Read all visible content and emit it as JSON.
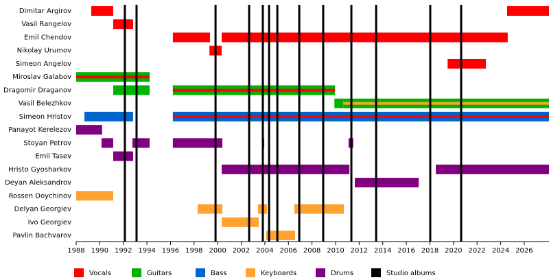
{
  "chart_data": {
    "type": "timeline",
    "xlim": [
      1988,
      2028.1
    ],
    "xticks": [
      1988,
      1990,
      1992,
      1994,
      1996,
      1998,
      2000,
      2002,
      2004,
      2006,
      2008,
      2010,
      2012,
      2014,
      2016,
      2018,
      2020,
      2022,
      2024,
      2026
    ],
    "series": [
      {
        "name": "Vocals",
        "color": "#ff0000"
      },
      {
        "name": "Guitars",
        "color": "#00b400"
      },
      {
        "name": "Bass",
        "color": "#0066cc"
      },
      {
        "name": "Keyboards",
        "color": "#ffa22f"
      },
      {
        "name": "Drums",
        "color": "#800080"
      },
      {
        "name": "Studio albums",
        "color": "#000000",
        "values": [
          1992.13,
          1993.12,
          1999.82,
          2002.67,
          2003.83,
          2004.36,
          2005.06,
          2006.92,
          2008.95,
          2011.34,
          2013.44,
          2018.03,
          2020.65
        ]
      }
    ],
    "members": [
      {
        "name": "Dimitar Argirov",
        "bars": [
          {
            "role": "Vocals",
            "start": 1989.28,
            "end": 1991.14
          },
          {
            "role": "Vocals",
            "start": 2024.55,
            "end": 2028.1
          }
        ]
      },
      {
        "name": "Vasil Rangelov",
        "bars": [
          {
            "role": "Vocals",
            "start": 1991.14,
            "end": 1992.83
          }
        ]
      },
      {
        "name": "Emil Chendov",
        "bars": [
          {
            "role": "Vocals",
            "start": 1996.2,
            "end": 1999.35
          },
          {
            "role": "Vocals",
            "start": 2000.34,
            "end": 2024.6
          }
        ]
      },
      {
        "name": "Nikolay Urumov",
        "bars": [
          {
            "role": "Vocals",
            "start": 1999.3,
            "end": 2000.34
          }
        ]
      },
      {
        "name": "Simeon Angelov",
        "bars": [
          {
            "role": "Vocals",
            "start": 2019.5,
            "end": 2022.75
          }
        ]
      },
      {
        "name": "Miroslav Galabov",
        "bars": [
          {
            "role": "Guitars",
            "stripe": "Vocals",
            "start": 1988,
            "end": 1994.23
          }
        ]
      },
      {
        "name": "Dragomir Draganov",
        "bars": [
          {
            "role": "Guitars",
            "start": 1991.14,
            "end": 1994.23
          },
          {
            "role": "Guitars",
            "stripe": "Vocals",
            "start": 1996.2,
            "end": 2009.95
          }
        ]
      },
      {
        "name": "Vasil Belezhkov",
        "bars": [
          {
            "role": "Guitars",
            "start": 2009.9,
            "end": 2010.65
          },
          {
            "role": "Guitars",
            "stripe": "Keyboards",
            "start": 2010.65,
            "end": 2028.1
          }
        ]
      },
      {
        "name": "Simeon Hristov",
        "bars": [
          {
            "role": "Bass",
            "start": 1988.7,
            "end": 1992.83
          },
          {
            "role": "Bass",
            "stripe": "Vocals",
            "start": 1996.2,
            "end": 2028.1
          }
        ]
      },
      {
        "name": "Panayot Kerelezov",
        "bars": [
          {
            "role": "Drums",
            "start": 1988,
            "end": 1990.2
          }
        ]
      },
      {
        "name": "Stoyan Petrov",
        "bars": [
          {
            "role": "Drums",
            "start": 1990.15,
            "end": 1991.14
          },
          {
            "role": "Drums",
            "start": 1992.77,
            "end": 1994.23
          },
          {
            "role": "Drums",
            "start": 1996.2,
            "end": 2000.4
          },
          {
            "role": "Drums",
            "start": 2003.77,
            "end": 2003.95
          },
          {
            "role": "Drums",
            "start": 2011.1,
            "end": 2011.5
          }
        ]
      },
      {
        "name": "Emil Tasev",
        "bars": [
          {
            "role": "Drums",
            "start": 1991.14,
            "end": 1992.83
          }
        ]
      },
      {
        "name": "Hristo Gyosharkov",
        "bars": [
          {
            "role": "Drums",
            "start": 2000.34,
            "end": 2011.17
          },
          {
            "role": "Drums",
            "start": 2018.5,
            "end": 2028.1
          }
        ]
      },
      {
        "name": "Deyan Aleksandrov",
        "bars": [
          {
            "role": "Drums",
            "start": 2011.63,
            "end": 2017.05
          }
        ]
      },
      {
        "name": "Rossen Doychinov",
        "bars": [
          {
            "role": "Keyboards",
            "start": 1988,
            "end": 1991.14
          }
        ]
      },
      {
        "name": "Delyan Georgiev",
        "bars": [
          {
            "role": "Keyboards",
            "start": 1998.3,
            "end": 2000.4
          },
          {
            "role": "Keyboards",
            "start": 2003.42,
            "end": 2004.18
          },
          {
            "role": "Keyboards",
            "start": 2006.5,
            "end": 2010.7
          }
        ]
      },
      {
        "name": "Ivo Georgiev",
        "bars": [
          {
            "role": "Keyboards",
            "start": 2000.34,
            "end": 2003.48
          }
        ]
      },
      {
        "name": "Pavlin Bachvarov",
        "bars": [
          {
            "role": "Keyboards",
            "start": 2004.12,
            "end": 2006.57
          }
        ]
      }
    ]
  }
}
